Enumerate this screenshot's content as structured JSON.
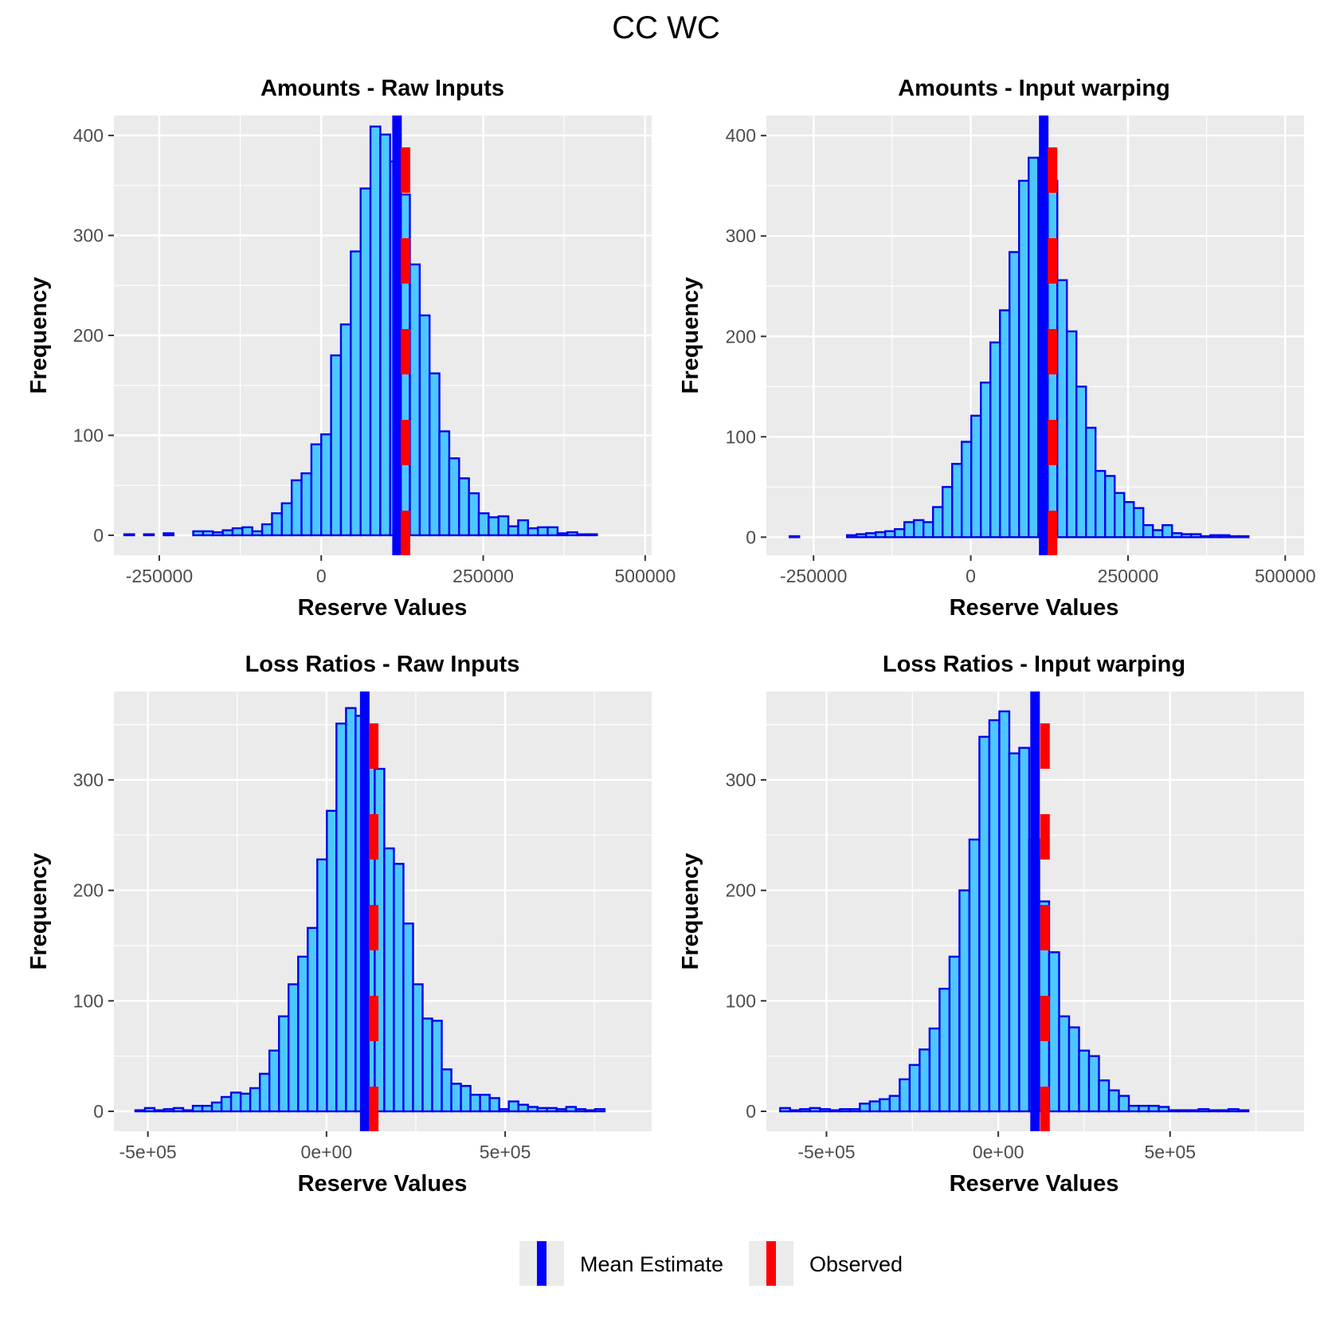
{
  "figure": {
    "title": "CC WC"
  },
  "legend": {
    "items": [
      {
        "label": "Mean Estimate",
        "color": "#0000FF"
      },
      {
        "label": "Observed",
        "color": "#FF0000"
      }
    ]
  },
  "colors": {
    "panel_bg": "#EBEBEB",
    "grid": "#FFFFFF",
    "bar_fill": "#4DC8FF",
    "bar_outline": "#0000EE",
    "mean_line": "#0000FF",
    "observed_line": "#FF0000"
  },
  "chart_data": [
    {
      "type": "bar",
      "title": "Amounts - Raw Inputs",
      "xlabel": "Reserve Values",
      "ylabel": "Frequency",
      "xlim": [
        -320000,
        510000
      ],
      "ylim": [
        -20,
        420
      ],
      "x_ticks": [
        -250000,
        0,
        250000,
        500000
      ],
      "x_tick_labels": [
        "-250000",
        "0",
        "250000",
        "500000"
      ],
      "y_ticks": [
        0,
        100,
        200,
        300,
        400
      ],
      "y_tick_labels": [
        "0",
        "100",
        "200",
        "300",
        "400"
      ],
      "bin_start": -304000,
      "bin_width": 15200,
      "counts": [
        1,
        0,
        1,
        0,
        2,
        0,
        0,
        4,
        4,
        3,
        5,
        7,
        8,
        4,
        11,
        22,
        32,
        55,
        62,
        91,
        101,
        180,
        211,
        284,
        347,
        409,
        401,
        374,
        341,
        271,
        220,
        162,
        104,
        77,
        57,
        42,
        22,
        18,
        19,
        9,
        15,
        7,
        8,
        8,
        2,
        3,
        1,
        1
      ],
      "mean_estimate": 117000,
      "observed": 130000
    },
    {
      "type": "bar",
      "title": "Amounts - Input warping",
      "xlabel": "Reserve Values",
      "ylabel": "Frequency",
      "xlim": [
        -325000,
        530000
      ],
      "ylim": [
        -18,
        420
      ],
      "x_ticks": [
        -250000,
        0,
        250000,
        500000
      ],
      "x_tick_labels": [
        "-250000",
        "0",
        "250000",
        "500000"
      ],
      "y_ticks": [
        0,
        100,
        200,
        300,
        400
      ],
      "y_tick_labels": [
        "0",
        "100",
        "200",
        "300",
        "400"
      ],
      "bin_start": -288000,
      "bin_width": 15200,
      "counts": [
        1,
        0,
        0,
        0,
        0,
        0,
        2,
        3,
        4,
        5,
        6,
        8,
        15,
        17,
        15,
        30,
        50,
        73,
        95,
        121,
        154,
        194,
        226,
        284,
        355,
        378,
        377,
        355,
        256,
        205,
        150,
        109,
        66,
        61,
        44,
        35,
        29,
        12,
        7,
        12,
        4,
        3,
        3,
        1,
        2,
        2,
        1,
        1
      ],
      "mean_estimate": 116000,
      "observed": 130000
    },
    {
      "type": "bar",
      "title": "Loss Ratios - Raw Inputs",
      "xlabel": "Reserve Values",
      "ylabel": "Frequency",
      "xlim": [
        -595000,
        910000
      ],
      "ylim": [
        -18,
        380
      ],
      "x_ticks": [
        -500000,
        0,
        500000
      ],
      "x_tick_labels": [
        "-5e+05",
        "0e+00",
        "5e+05"
      ],
      "y_ticks": [
        0,
        100,
        200,
        300
      ],
      "y_tick_labels": [
        "0",
        "100",
        "200",
        "300"
      ],
      "bin_start": -535000,
      "bin_width": 26800,
      "counts": [
        1,
        3,
        1,
        2,
        3,
        1,
        5,
        5,
        8,
        13,
        17,
        16,
        21,
        34,
        55,
        86,
        115,
        140,
        166,
        228,
        272,
        351,
        365,
        358,
        336,
        310,
        238,
        224,
        170,
        115,
        84,
        82,
        38,
        25,
        23,
        15,
        15,
        12,
        2,
        9,
        6,
        4,
        3,
        3,
        2,
        4,
        2,
        1,
        2
      ],
      "mean_estimate": 107000,
      "observed": 132000
    },
    {
      "type": "bar",
      "title": "Loss Ratios - Input warping",
      "xlabel": "Reserve Values",
      "ylabel": "Frequency",
      "xlim": [
        -675000,
        890000
      ],
      "ylim": [
        -18,
        380
      ],
      "x_ticks": [
        -500000,
        0,
        500000
      ],
      "x_tick_labels": [
        "-5e+05",
        "0e+00",
        "5e+05"
      ],
      "y_ticks": [
        0,
        100,
        200,
        300
      ],
      "y_tick_labels": [
        "0",
        "100",
        "200",
        "300"
      ],
      "bin_start": -635000,
      "bin_width": 29000,
      "counts": [
        3,
        1,
        2,
        3,
        2,
        1,
        2,
        2,
        7,
        9,
        11,
        14,
        29,
        42,
        56,
        75,
        111,
        140,
        200,
        246,
        339,
        354,
        362,
        324,
        329,
        246,
        190,
        144,
        86,
        76,
        55,
        50,
        28,
        19,
        14,
        5,
        5,
        5,
        4,
        1,
        1,
        1,
        2,
        1,
        1,
        2,
        1
      ],
      "mean_estimate": 107000,
      "observed": 136000
    }
  ]
}
